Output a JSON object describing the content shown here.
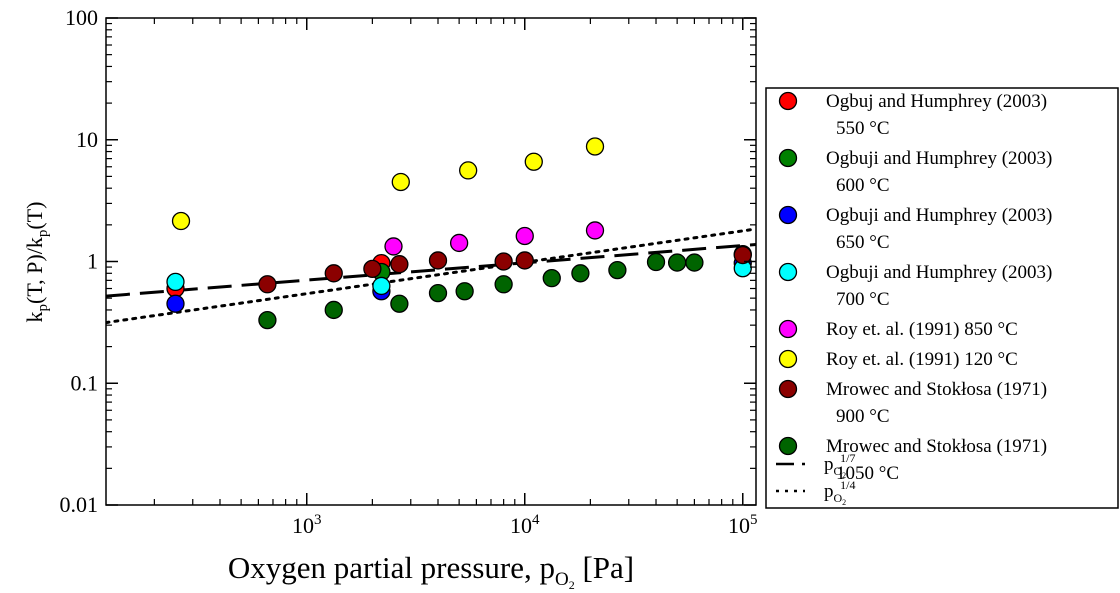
{
  "chart_data": {
    "type": "scatter",
    "x_scale": "log",
    "y_scale": "log",
    "xlim": [
      120,
      115000
    ],
    "ylim": [
      0.01,
      100
    ],
    "xlabel": {
      "main": "Oxygen partial pressure, p",
      "sub": "O",
      "sub2": "2",
      "unit": " [Pa]"
    },
    "ylabel": {
      "p1": "k",
      "s1": "p",
      "p2": "(T, P)/k",
      "s2": "p",
      "p3": "(T)"
    },
    "y_ticks": [
      {
        "value": 0.01,
        "label": "0.01"
      },
      {
        "value": 0.1,
        "label": "0.1"
      },
      {
        "value": 1,
        "label": "1"
      },
      {
        "value": 10,
        "label": "10"
      },
      {
        "value": 100,
        "label": "100"
      }
    ],
    "x_ticks": [
      {
        "value": 1000,
        "base": "10",
        "exp": "3"
      },
      {
        "value": 10000,
        "base": "10",
        "exp": "4"
      },
      {
        "value": 100000,
        "base": "10",
        "exp": "5"
      }
    ],
    "grid": false,
    "legend_position": "right, outside plot",
    "series": [
      {
        "name": "Ogbuj and Humphrey (2003)",
        "name2": "550 °C",
        "marker": "circle",
        "color": "#ff0000",
        "points": [
          [
            250,
            0.6
          ],
          [
            2200,
            0.97
          ],
          [
            100000,
            1.15
          ]
        ]
      },
      {
        "name": "Ogbuji and Humphrey (2003)",
        "name2": "600 °C",
        "marker": "circle",
        "color": "#008000",
        "points": [
          [
            2200,
            0.82
          ]
        ]
      },
      {
        "name": "Ogbuji and Humphrey (2003)",
        "name2": "650 °C",
        "marker": "circle",
        "color": "#0000ff",
        "points": [
          [
            250,
            0.45
          ],
          [
            2200,
            0.57
          ],
          [
            100000,
            0.97
          ]
        ]
      },
      {
        "name": "Ogbuji and Humphrey (2003)",
        "name2": "700 °C",
        "marker": "circle",
        "color": "#00ffff",
        "points": [
          [
            250,
            0.68
          ],
          [
            2200,
            0.63
          ],
          [
            100000,
            0.88
          ]
        ]
      },
      {
        "name": "Roy et. al. (1991) 850 °C",
        "name2": "",
        "marker": "circle",
        "color": "#ff00ff",
        "points": [
          [
            2500,
            1.33
          ],
          [
            5000,
            1.42
          ],
          [
            10000,
            1.62
          ],
          [
            21000,
            1.8
          ]
        ]
      },
      {
        "name": "Roy et. al. (1991) 120 °C",
        "name2": "",
        "marker": "circle",
        "color": "#ffff00",
        "points": [
          [
            265,
            2.15
          ],
          [
            2700,
            4.5
          ],
          [
            5500,
            5.6
          ],
          [
            11000,
            6.6
          ],
          [
            21000,
            8.8
          ]
        ]
      },
      {
        "name": "Mrowec and Stokłosa (1971)",
        "name2": "900 °C",
        "marker": "circle",
        "color": "#8b0000",
        "points": [
          [
            660,
            0.65
          ],
          [
            1330,
            0.8
          ],
          [
            2000,
            0.87
          ],
          [
            2660,
            0.95
          ],
          [
            4000,
            1.02
          ],
          [
            8000,
            1.0
          ],
          [
            10000,
            1.02
          ],
          [
            100000,
            1.13
          ]
        ]
      },
      {
        "name": "Mrowec  and Stokłosa (1971)",
        "name2": "1050 °C",
        "marker": "circle",
        "color": "#006400",
        "points": [
          [
            660,
            0.33
          ],
          [
            1330,
            0.4
          ],
          [
            2660,
            0.45
          ],
          [
            4000,
            0.55
          ],
          [
            5300,
            0.57
          ],
          [
            8000,
            0.65
          ],
          [
            13300,
            0.73
          ],
          [
            18000,
            0.8
          ],
          [
            26600,
            0.85
          ],
          [
            40000,
            0.99
          ],
          [
            50000,
            0.98
          ],
          [
            60000,
            0.98
          ]
        ]
      },
      {
        "name": "p",
        "sub": "O",
        "sub2": "2",
        "sup": "1/7",
        "marker": "dashed-line",
        "color": "#000000",
        "line": [
          [
            120,
            0.52
          ],
          [
            115000,
            1.38
          ]
        ]
      },
      {
        "name": "p",
        "sub": "O",
        "sub2": "2",
        "sup": "1/4",
        "marker": "dotted-line",
        "color": "#000000",
        "line": [
          [
            120,
            0.315
          ],
          [
            115000,
            1.85
          ]
        ]
      }
    ]
  }
}
